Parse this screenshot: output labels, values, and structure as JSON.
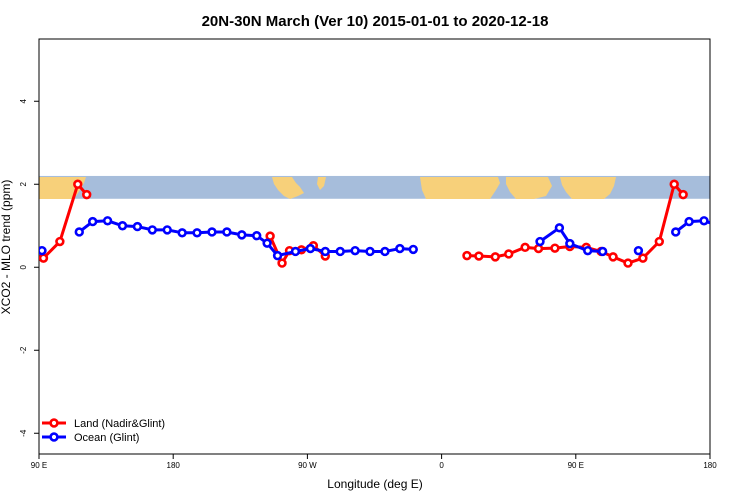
{
  "chart_data": {
    "type": "line",
    "title": "20N-30N March (Ver 10)   2015-01-01 to 2020-12-18",
    "xlabel": "Longitude (deg E)",
    "ylabel": "XCO2 - MLO trend (ppm)",
    "xlim": [
      90,
      540
    ],
    "ylim": [
      -4.5,
      5.5
    ],
    "xticks": [
      90,
      180,
      270,
      360,
      450,
      540
    ],
    "xtick_labels": [
      "90 E",
      "180",
      "90 W",
      "0",
      "90 E",
      "180"
    ],
    "yticks": [
      -4,
      -2,
      0,
      2,
      4
    ],
    "ytick_labels": [
      "-4",
      "-2",
      "0",
      "2",
      "4"
    ],
    "map_band": {
      "y_range": [
        1.65,
        2.2
      ],
      "ocean_color": "#a6bddb",
      "land_color": "#f7d07a"
    },
    "legend_position": "bottom-left",
    "series": [
      {
        "name": "Land (Nadir&Glint)",
        "color": "#ff0000",
        "points": [
          [
            [
              93,
              0.22
            ],
            [
              104,
              0.62
            ],
            [
              116,
              2.0
            ],
            [
              122,
              1.75
            ]
          ],
          [
            [
              245,
              0.75
            ],
            [
              253,
              0.1
            ],
            [
              258,
              0.4
            ],
            [
              266,
              0.42
            ],
            [
              274,
              0.52
            ],
            [
              282,
              0.27
            ]
          ],
          [
            [
              377,
              0.28
            ],
            [
              385,
              0.27
            ],
            [
              396,
              0.25
            ],
            [
              405,
              0.32
            ],
            [
              416,
              0.48
            ],
            [
              425,
              0.45
            ],
            [
              436,
              0.46
            ],
            [
              446,
              0.5
            ],
            [
              457,
              0.48
            ],
            [
              467,
              0.38
            ],
            [
              475,
              0.25
            ],
            [
              485,
              0.1
            ],
            [
              495,
              0.22
            ],
            [
              506,
              0.62
            ],
            [
              516,
              2.0
            ],
            [
              522,
              1.75
            ]
          ]
        ]
      },
      {
        "name": "Ocean (Glint)",
        "color": "#0000ff",
        "points": [
          [
            [
              92,
              0.4
            ]
          ],
          [
            [
              117,
              0.85
            ],
            [
              126,
              1.1
            ],
            [
              136,
              1.12
            ],
            [
              146,
              1.0
            ],
            [
              156,
              0.98
            ],
            [
              166,
              0.9
            ],
            [
              176,
              0.9
            ],
            [
              186,
              0.83
            ],
            [
              196,
              0.83
            ],
            [
              206,
              0.85
            ],
            [
              216,
              0.85
            ],
            [
              226,
              0.78
            ],
            [
              236,
              0.76
            ],
            [
              243,
              0.58
            ],
            [
              250,
              0.28
            ],
            [
              262,
              0.38
            ],
            [
              272,
              0.45
            ],
            [
              282,
              0.38
            ],
            [
              292,
              0.38
            ],
            [
              302,
              0.4
            ],
            [
              312,
              0.38
            ],
            [
              322,
              0.38
            ],
            [
              332,
              0.45
            ],
            [
              341,
              0.43
            ]
          ],
          [
            [
              426,
              0.62
            ],
            [
              439,
              0.95
            ],
            [
              446,
              0.57
            ],
            [
              458,
              0.4
            ],
            [
              468,
              0.38
            ]
          ],
          [
            [
              492,
              0.4
            ]
          ],
          [
            [
              517,
              0.85
            ],
            [
              526,
              1.1
            ],
            [
              536,
              1.12
            ],
            [
              546,
              1.0
            ],
            [
              556,
              0.98
            ],
            [
              566,
              0.9
            ],
            [
              576,
              0.9
            ]
          ]
        ]
      }
    ]
  }
}
